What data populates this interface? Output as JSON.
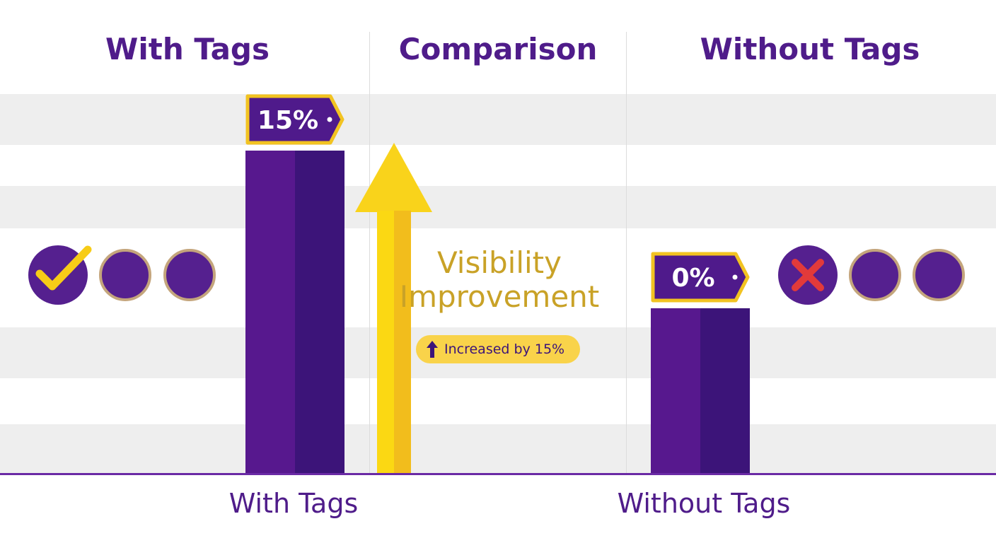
{
  "headers": {
    "left": "With Tags",
    "center": "Comparison",
    "right": "Without Tags"
  },
  "chart_data": {
    "type": "bar",
    "categories": [
      "With Tags",
      "Without Tags"
    ],
    "values": [
      15,
      0
    ],
    "value_labels": [
      "15%",
      "0%"
    ],
    "unit": "%",
    "legend": "none",
    "grid": "horizontal bands",
    "colors": {
      "bar": "#57188e",
      "bar_shade": "#3c1479",
      "tag_border": "#f2c321",
      "arrow": "#f7cc17"
    }
  },
  "annotation": {
    "line1": "Visibility",
    "line2": "Improvement",
    "pill_text": "Increased by 15%",
    "pill_icon": "up-arrow-icon"
  },
  "icons": {
    "left": [
      "check-icon",
      "plain-dot",
      "plain-dot"
    ],
    "right": [
      "x-icon",
      "plain-dot",
      "plain-dot"
    ]
  }
}
